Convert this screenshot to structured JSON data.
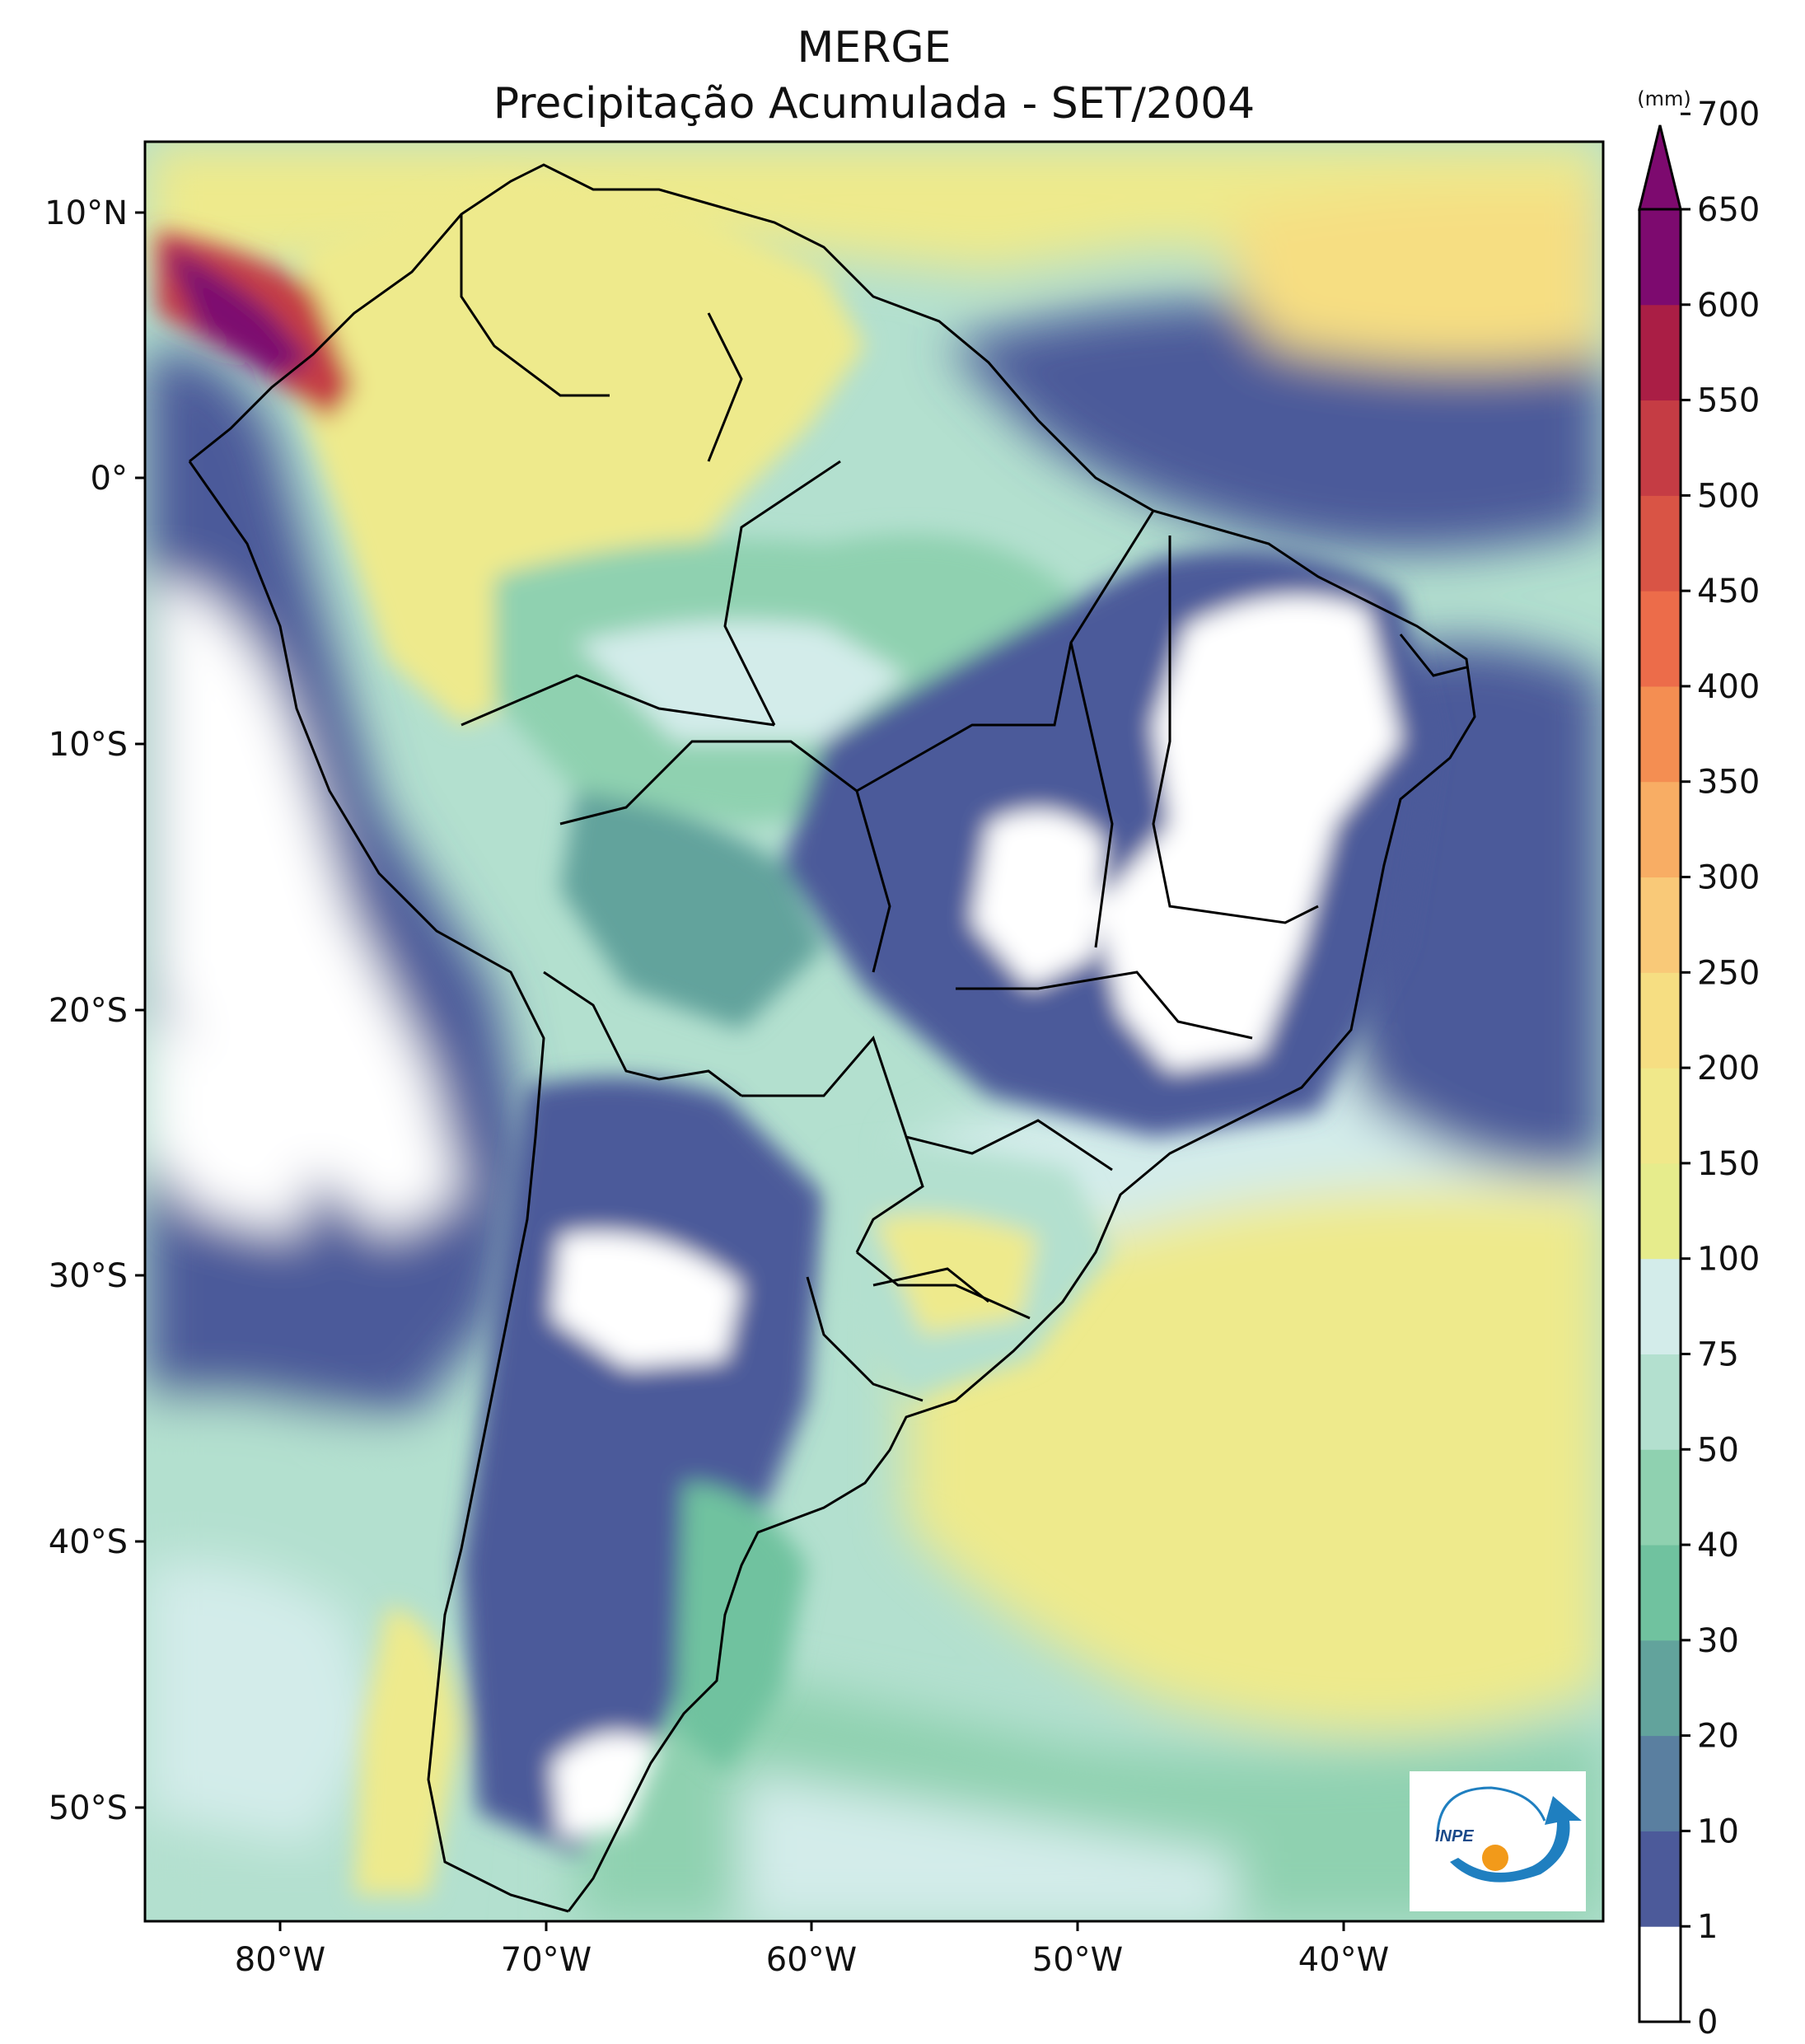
{
  "title": "MERGE",
  "subtitle": "Precipitação Acumulada - SET/2004",
  "lat_labels": [
    "10°N",
    "0°",
    "10°S",
    "20°S",
    "30°S",
    "40°S",
    "50°S"
  ],
  "lon_labels": [
    "80°W",
    "70°W",
    "60°W",
    "50°W",
    "40°W"
  ],
  "colorbar": {
    "unit": "(mm)",
    "levels": [
      "0",
      "1",
      "10",
      "20",
      "30",
      "40",
      "50",
      "75",
      "100",
      "150",
      "200",
      "250",
      "300",
      "350",
      "400",
      "450",
      "500",
      "550",
      "600",
      "650",
      "700"
    ],
    "colors": [
      "#ffffff",
      "#4c5a9a",
      "#5a7fa0",
      "#62a39c",
      "#70c29f",
      "#8fd1b0",
      "#b3e0cf",
      "#d3ecea",
      "#e6ec8c",
      "#f0e88a",
      "#f6de82",
      "#f9c978",
      "#f8ad64",
      "#f48e52",
      "#ec6c4a",
      "#d95445",
      "#c53c44",
      "#aa1e45",
      "#7d0a6f"
    ],
    "extend_max_color": "#7d0a6f"
  },
  "logo": {
    "text": "INPE",
    "brand_color": "#1f7fc0",
    "accent_color": "#f29a1a"
  }
}
